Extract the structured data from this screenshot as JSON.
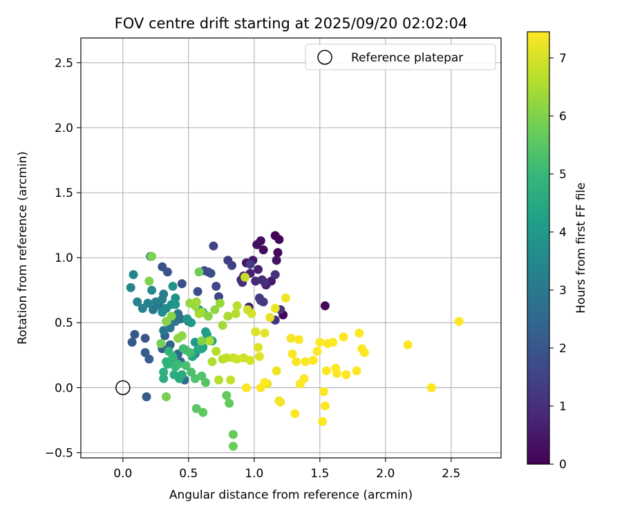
{
  "chart_data": {
    "type": "scatter",
    "title": "FOV centre drift starting at 2025/09/20 02:02:04",
    "xlabel": "Angular distance from reference (arcmin)",
    "ylabel": "Rotation from reference (arcmin)",
    "xlim": [
      -0.32,
      2.88
    ],
    "ylim": [
      -0.54,
      2.69
    ],
    "xticks": [
      0.0,
      0.5,
      1.0,
      1.5,
      2.0,
      2.5
    ],
    "xtick_labels": [
      "0.0",
      "0.5",
      "1.0",
      "1.5",
      "2.0",
      "2.5"
    ],
    "yticks": [
      -0.5,
      0.0,
      0.5,
      1.0,
      1.5,
      2.0,
      2.5
    ],
    "ytick_labels": [
      "−0.5",
      "0.0",
      "0.5",
      "1.0",
      "1.5",
      "2.0",
      "2.5"
    ],
    "grid": true,
    "legend": {
      "position": "top-right",
      "entries": [
        "Reference platepar"
      ]
    },
    "reference_point": {
      "x": 0.0,
      "y": 0.0,
      "label": "Reference platepar"
    },
    "colorbar": {
      "label": "Hours from first FF file",
      "min": 0,
      "max": 7.45,
      "ticks": [
        0,
        1,
        2,
        3,
        4,
        5,
        6,
        7
      ],
      "tick_labels": [
        "0",
        "1",
        "2",
        "3",
        "4",
        "5",
        "6",
        "7"
      ],
      "colormap": "viridis",
      "colors": [
        "#440154",
        "#482878",
        "#3e4989",
        "#31688e",
        "#26828e",
        "#1f9e89",
        "#35b779",
        "#6ece58",
        "#b5de2b",
        "#fde725"
      ]
    },
    "points_columns": [
      "x",
      "y",
      "hours"
    ],
    "points": [
      [
        1.16,
        1.17,
        0.05
      ],
      [
        1.19,
        1.14,
        0.1
      ],
      [
        1.18,
        1.04,
        0.15
      ],
      [
        1.07,
        1.06,
        0.2
      ],
      [
        1.05,
        1.13,
        0.25
      ],
      [
        1.02,
        1.1,
        0.3
      ],
      [
        1.17,
        0.98,
        0.35
      ],
      [
        0.94,
        0.96,
        0.4
      ],
      [
        0.99,
        0.98,
        0.45
      ],
      [
        1.13,
        0.82,
        0.5
      ],
      [
        1.09,
        0.79,
        0.55
      ],
      [
        1.22,
        0.56,
        0.1
      ],
      [
        1.54,
        0.63,
        0.15
      ],
      [
        0.96,
        0.62,
        0.6
      ],
      [
        0.97,
        0.88,
        0.65
      ],
      [
        1.03,
        0.91,
        0.7
      ],
      [
        0.92,
        0.86,
        0.75
      ],
      [
        0.9,
        0.83,
        0.8
      ],
      [
        1.06,
        0.83,
        0.85
      ],
      [
        1.01,
        0.82,
        0.9
      ],
      [
        0.91,
        0.81,
        0.95
      ],
      [
        1.08,
        0.81,
        1.0
      ],
      [
        1.16,
        0.87,
        1.05
      ],
      [
        1.16,
        0.52,
        1.1
      ],
      [
        1.2,
        0.6,
        1.15
      ],
      [
        1.05,
        0.67,
        1.2
      ],
      [
        1.07,
        0.66,
        1.25
      ],
      [
        1.04,
        0.69,
        1.3
      ],
      [
        0.97,
        0.95,
        1.35
      ],
      [
        0.8,
        0.98,
        1.4
      ],
      [
        0.83,
        0.94,
        1.45
      ],
      [
        0.69,
        1.09,
        1.5
      ],
      [
        0.71,
        0.78,
        1.55
      ],
      [
        0.73,
        0.7,
        1.6
      ],
      [
        0.65,
        0.89,
        1.65
      ],
      [
        0.62,
        0.9,
        1.7
      ],
      [
        0.67,
        0.88,
        1.75
      ],
      [
        0.57,
        0.74,
        1.8
      ],
      [
        0.45,
        0.8,
        1.85
      ],
      [
        0.3,
        0.93,
        1.9
      ],
      [
        0.34,
        0.89,
        1.95
      ],
      [
        0.17,
        0.38,
        2.0
      ],
      [
        0.09,
        0.41,
        2.05
      ],
      [
        0.07,
        0.35,
        2.1
      ],
      [
        0.18,
        -0.07,
        2.15
      ],
      [
        0.17,
        0.27,
        2.2
      ],
      [
        0.2,
        0.22,
        2.25
      ],
      [
        0.3,
        0.3,
        2.3
      ],
      [
        0.32,
        0.4,
        2.35
      ],
      [
        0.36,
        0.33,
        2.4
      ],
      [
        0.42,
        0.26,
        2.45
      ],
      [
        0.44,
        0.2,
        2.5
      ],
      [
        0.47,
        0.06,
        2.55
      ],
      [
        0.53,
        0.24,
        2.6
      ],
      [
        0.55,
        0.26,
        2.65
      ],
      [
        0.5,
        0.51,
        2.7
      ],
      [
        0.44,
        0.53,
        2.75
      ],
      [
        0.42,
        0.57,
        2.8
      ],
      [
        0.4,
        0.51,
        2.85
      ],
      [
        0.36,
        0.46,
        2.9
      ],
      [
        0.31,
        0.44,
        2.95
      ],
      [
        0.23,
        0.6,
        3.0
      ],
      [
        0.28,
        0.63,
        3.05
      ],
      [
        0.31,
        0.72,
        3.1
      ],
      [
        0.3,
        0.68,
        3.15
      ],
      [
        0.25,
        0.66,
        3.2
      ],
      [
        0.19,
        0.65,
        3.25
      ],
      [
        0.15,
        0.61,
        3.3
      ],
      [
        0.11,
        0.66,
        3.35
      ],
      [
        0.06,
        0.77,
        3.4
      ],
      [
        0.08,
        0.87,
        3.45
      ],
      [
        0.21,
        1.01,
        3.5
      ],
      [
        0.22,
        0.75,
        3.55
      ],
      [
        0.3,
        0.58,
        3.6
      ],
      [
        0.33,
        0.61,
        3.65
      ],
      [
        0.37,
        0.64,
        3.7
      ],
      [
        0.4,
        0.69,
        3.75
      ],
      [
        0.38,
        0.78,
        3.8
      ],
      [
        0.4,
        0.64,
        3.85
      ],
      [
        0.49,
        0.53,
        3.9
      ],
      [
        0.52,
        0.5,
        3.95
      ],
      [
        0.55,
        0.35,
        4.0
      ],
      [
        0.58,
        0.6,
        4.05
      ],
      [
        0.61,
        0.58,
        4.1
      ],
      [
        0.63,
        0.43,
        4.15
      ],
      [
        0.64,
        0.41,
        4.2
      ],
      [
        0.68,
        0.36,
        4.25
      ],
      [
        0.61,
        0.31,
        4.3
      ],
      [
        0.6,
        0.3,
        4.35
      ],
      [
        0.57,
        0.29,
        4.4
      ],
      [
        0.53,
        0.24,
        4.45
      ],
      [
        0.45,
        0.1,
        4.5
      ],
      [
        0.43,
        0.07,
        4.55
      ],
      [
        0.39,
        0.1,
        4.6
      ],
      [
        0.31,
        0.07,
        4.65
      ],
      [
        0.31,
        0.12,
        4.7
      ],
      [
        0.34,
        0.18,
        4.75
      ],
      [
        0.33,
        0.2,
        4.8
      ],
      [
        0.35,
        0.28,
        4.85
      ],
      [
        0.38,
        0.21,
        4.9
      ],
      [
        0.38,
        0.24,
        4.95
      ],
      [
        0.4,
        0.16,
        5.0
      ],
      [
        0.42,
        0.18,
        5.05
      ],
      [
        0.46,
        0.3,
        5.1
      ],
      [
        0.48,
        0.29,
        5.15
      ],
      [
        0.51,
        0.27,
        5.2
      ],
      [
        0.48,
        0.17,
        5.25
      ],
      [
        0.52,
        0.12,
        5.3
      ],
      [
        0.55,
        0.07,
        5.35
      ],
      [
        0.6,
        0.09,
        5.4
      ],
      [
        0.63,
        0.04,
        5.45
      ],
      [
        0.56,
        -0.16,
        5.5
      ],
      [
        0.61,
        -0.19,
        5.55
      ],
      [
        0.79,
        -0.06,
        5.6
      ],
      [
        0.81,
        -0.12,
        5.65
      ],
      [
        0.84,
        -0.36,
        5.7
      ],
      [
        0.84,
        -0.45,
        5.75
      ],
      [
        0.58,
        0.89,
        5.8
      ],
      [
        0.29,
        0.34,
        5.85
      ],
      [
        0.33,
        -0.07,
        5.9
      ],
      [
        0.22,
        1.01,
        5.95
      ],
      [
        0.2,
        0.82,
        6.0
      ],
      [
        0.33,
        0.51,
        6.05
      ],
      [
        0.37,
        0.55,
        6.1
      ],
      [
        0.42,
        0.38,
        6.15
      ],
      [
        0.45,
        0.4,
        6.2
      ],
      [
        0.51,
        0.65,
        6.25
      ],
      [
        0.55,
        0.63,
        6.3
      ],
      [
        0.56,
        0.66,
        6.35
      ],
      [
        0.6,
        0.58,
        6.4
      ],
      [
        0.58,
        0.57,
        6.45
      ],
      [
        0.66,
        0.36,
        6.5
      ],
      [
        0.68,
        0.2,
        6.55
      ],
      [
        0.71,
        0.28,
        6.6
      ],
      [
        0.73,
        0.06,
        6.65
      ],
      [
        0.76,
        0.22,
        6.7
      ],
      [
        0.79,
        0.23,
        6.75
      ],
      [
        0.82,
        0.06,
        6.8
      ],
      [
        0.84,
        0.23,
        6.85
      ],
      [
        0.87,
        0.22,
        6.9
      ],
      [
        0.92,
        0.23,
        6.95
      ],
      [
        0.98,
        0.57,
        7.0
      ],
      [
        1.01,
        0.43,
        7.05
      ],
      [
        1.03,
        0.31,
        7.1
      ],
      [
        1.08,
        0.42,
        7.15
      ],
      [
        1.1,
        0.03,
        7.2
      ],
      [
        1.17,
        0.13,
        7.25
      ],
      [
        1.19,
        -0.1,
        7.3
      ],
      [
        1.2,
        -0.11,
        7.35
      ],
      [
        0.6,
        0.36,
        6.0
      ],
      [
        0.65,
        0.55,
        6.1
      ],
      [
        0.7,
        0.6,
        6.2
      ],
      [
        0.74,
        0.65,
        6.3
      ],
      [
        0.76,
        0.48,
        6.4
      ],
      [
        0.8,
        0.55,
        6.5
      ],
      [
        0.86,
        0.57,
        6.6
      ],
      [
        0.87,
        0.63,
        6.7
      ],
      [
        0.93,
        0.85,
        6.8
      ],
      [
        0.95,
        0.6,
        6.9
      ],
      [
        0.97,
        0.21,
        7.0
      ],
      [
        1.04,
        0.24,
        7.1
      ],
      [
        1.12,
        0.54,
        7.2
      ],
      [
        1.16,
        0.61,
        7.25
      ],
      [
        1.24,
        0.69,
        7.3
      ],
      [
        1.28,
        0.38,
        7.35
      ],
      [
        1.29,
        0.26,
        7.4
      ],
      [
        1.32,
        0.2,
        7.4
      ],
      [
        1.34,
        0.37,
        7.42
      ],
      [
        1.35,
        0.03,
        7.42
      ],
      [
        1.38,
        0.07,
        7.44
      ],
      [
        1.39,
        0.2,
        7.44
      ],
      [
        1.45,
        0.21,
        7.45
      ],
      [
        1.48,
        0.28,
        7.45
      ],
      [
        1.5,
        0.35,
        7.45
      ],
      [
        1.52,
        -0.26,
        7.45
      ],
      [
        1.53,
        -0.03,
        7.45
      ],
      [
        1.54,
        -0.14,
        7.45
      ],
      [
        1.55,
        0.13,
        7.45
      ],
      [
        1.56,
        0.34,
        7.45
      ],
      [
        1.6,
        0.35,
        7.45
      ],
      [
        1.62,
        0.15,
        7.45
      ],
      [
        1.63,
        0.11,
        7.45
      ],
      [
        1.68,
        0.39,
        7.45
      ],
      [
        1.7,
        0.1,
        7.45
      ],
      [
        1.78,
        0.13,
        7.45
      ],
      [
        1.8,
        0.42,
        7.45
      ],
      [
        1.82,
        0.3,
        7.45
      ],
      [
        1.84,
        0.27,
        7.45
      ],
      [
        2.17,
        0.33,
        7.45
      ],
      [
        2.35,
        0.0,
        7.45
      ],
      [
        2.56,
        0.51,
        7.45
      ],
      [
        1.31,
        -0.2,
        7.45
      ],
      [
        1.08,
        0.04,
        7.45
      ],
      [
        1.05,
        0.0,
        7.45
      ],
      [
        0.94,
        0.0,
        7.45
      ]
    ]
  }
}
